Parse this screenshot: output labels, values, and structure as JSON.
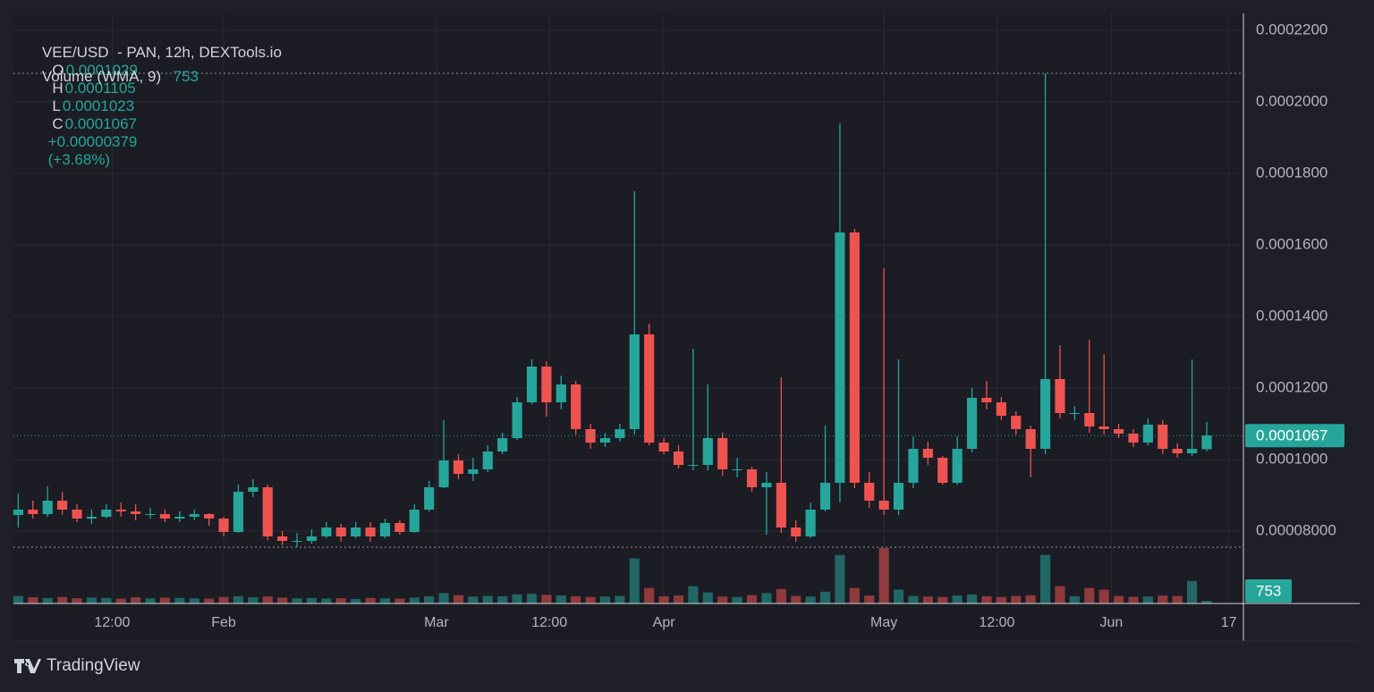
{
  "chart_data": {
    "type": "candlestick",
    "title": "VEE/USD  - PAN, 12h, DEXTools.io",
    "ohlc_labels": [
      "O",
      "H",
      "L",
      "C"
    ],
    "change": {
      "value": 3.79e-06,
      "label": "+0.00000379"
    },
    "change_pct": {
      "value": 3.68,
      "label": "(+3.68%)"
    },
    "up_color": "#26a69a",
    "down_color": "#ef5350",
    "grid": true,
    "brand": "TradingView",
    "xlim": [
      2.34,
      170
    ],
    "xticks": [
      {
        "value": 15.8,
        "label": "12:00"
      },
      {
        "value": 31,
        "label": "Feb"
      },
      {
        "value": 60,
        "label": "Mar"
      },
      {
        "value": 75.4,
        "label": "12:00"
      },
      {
        "value": 91,
        "label": "Apr"
      },
      {
        "value": 121,
        "label": "May"
      },
      {
        "value": 136.4,
        "label": "12:00"
      },
      {
        "value": 152,
        "label": "Jun"
      },
      {
        "value": 168,
        "label": "17"
      }
    ],
    "ylim": [
      5.975e-05,
      0.0002285
    ],
    "yticks": [
      {
        "value": 8e-05,
        "label": "0.00008000"
      },
      {
        "value": 0.0001,
        "label": "0.0001000"
      },
      {
        "value": 0.00012,
        "label": "0.0001200"
      },
      {
        "value": 0.00014,
        "label": "0.0001400"
      },
      {
        "value": 0.00016,
        "label": "0.0001600"
      },
      {
        "value": 0.00018,
        "label": "0.0001800"
      },
      {
        "value": 0.0002,
        "label": "0.0002000"
      },
      {
        "value": 0.00022,
        "label": "0.0002200"
      }
    ],
    "candles": {
      "x": [
        3,
        5,
        7,
        9,
        11,
        13,
        15,
        17,
        19,
        21,
        23,
        25,
        27,
        29,
        31,
        33,
        35,
        37,
        39,
        41,
        43,
        45,
        47,
        49,
        51,
        53,
        55,
        57,
        59,
        61,
        63,
        65,
        67,
        69,
        71,
        73,
        75,
        77,
        79,
        81,
        83,
        85,
        87,
        89,
        91,
        93,
        95,
        97,
        99,
        101,
        103,
        105,
        107,
        109,
        111,
        113,
        115,
        117,
        119,
        121,
        123,
        125,
        127,
        129,
        131,
        133,
        135,
        137,
        139,
        141,
        143,
        145,
        147,
        149,
        151,
        153,
        155,
        157,
        159,
        161,
        163,
        165
      ],
      "open": [
        8.45e-05,
        8.6e-05,
        8.475e-05,
        8.85e-05,
        8.6e-05,
        8.35e-05,
        8.4e-05,
        8.6e-05,
        8.55e-05,
        8.475e-05,
        8.475e-05,
        8.35e-05,
        8.4e-05,
        8.475e-05,
        8.35e-05,
        7.975e-05,
        9.1e-05,
        9.225e-05,
        7.85e-05,
        7.725e-05,
        7.725e-05,
        7.85e-05,
        8.1e-05,
        7.85e-05,
        8.1e-05,
        7.85e-05,
        8.225e-05,
        7.975e-05,
        8.6e-05,
        9.225e-05,
        9.975e-05,
        9.6e-05,
        9.725e-05,
        0.00010225,
        0.000106,
        0.000116,
        0.000126,
        0.000116,
        0.000121,
        0.0001085,
        0.00010475,
        0.000106,
        0.0001085,
        0.000135,
        0.00010475,
        0.00010225,
        9.85e-05,
        9.85e-05,
        0.000106,
        9.725e-05,
        9.725e-05,
        9.225e-05,
        9.35e-05,
        8.1e-05,
        7.85e-05,
        8.6e-05,
        9.35e-05,
        0.0001635,
        9.35e-05,
        8.85e-05,
        8.6e-05,
        9.35e-05,
        0.000103,
        0.0001005,
        9.35e-05,
        0.000103,
        0.00011725,
        0.000116,
        0.00011225,
        0.0001085,
        0.000103,
        0.0001225,
        0.000113,
        0.000113,
        0.00010925,
        0.0001085,
        0.00010725,
        0.00010475,
        0.00010975,
        0.000103,
        0.00010175,
        0.0001029
      ],
      "high": [
        9.05e-05,
        8.85e-05,
        9.25e-05,
        9.1e-05,
        8.75e-05,
        8.6e-05,
        8.75e-05,
        8.8e-05,
        8.75e-05,
        8.65e-05,
        8.6e-05,
        8.55e-05,
        8.6e-05,
        8.5e-05,
        8.4e-05,
        9.3e-05,
        9.45e-05,
        9.3e-05,
        8e-05,
        7.95e-05,
        8.05e-05,
        8.25e-05,
        8.2e-05,
        8.25e-05,
        8.25e-05,
        8.35e-05,
        8.3e-05,
        8.75e-05,
        9.4e-05,
        0.000111,
        0.0001015,
        0.0001005,
        0.000104,
        0.0001075,
        0.0001175,
        0.000128,
        0.0001275,
        0.0001235,
        0.000122,
        0.00011,
        0.0001075,
        0.00011,
        0.000175,
        0.000138,
        0.000106,
        0.000104,
        0.000131,
        0.000121,
        0.0001075,
        0.0001005,
        9.8e-05,
        9.65e-05,
        0.000123,
        8.3e-05,
        8.8e-05,
        0.0001095,
        0.000194,
        0.0001645,
        9.65e-05,
        0.0001535,
        0.000128,
        0.0001065,
        0.000105,
        0.000101,
        0.0001065,
        0.00012,
        0.000122,
        0.0001175,
        0.0001135,
        0.0001095,
        0.000208,
        0.000132,
        0.000115,
        0.0001335,
        0.0001295,
        0.00011,
        0.0001085,
        0.0001115,
        0.000111,
        0.0001045,
        0.000128,
        0.0001105
      ],
      "low": [
        8.1e-05,
        8.35e-05,
        8.4e-05,
        8.45e-05,
        8.25e-05,
        8.2e-05,
        8.35e-05,
        8.4e-05,
        8.3e-05,
        8.35e-05,
        8.25e-05,
        8.25e-05,
        8.3e-05,
        8.15e-05,
        7.85e-05,
        7.95e-05,
        8.95e-05,
        7.75e-05,
        7.6e-05,
        7.55e-05,
        7.65e-05,
        7.8e-05,
        7.7e-05,
        7.8e-05,
        7.7e-05,
        7.8e-05,
        7.9e-05,
        7.95e-05,
        8.55e-05,
        9.2e-05,
        9.45e-05,
        9.4e-05,
        9.65e-05,
        0.0001015,
        0.0001055,
        0.0001155,
        0.000112,
        0.000114,
        0.000107,
        0.000103,
        0.0001035,
        0.000105,
        0.000107,
        0.000104,
        0.0001015,
        9.75e-05,
        9.7e-05,
        9.7e-05,
        9.55e-05,
        9.5e-05,
        9.1e-05,
        7.9e-05,
        7.95e-05,
        7.7e-05,
        7.8e-05,
        8.55e-05,
        8.8e-05,
        9.2e-05,
        8.65e-05,
        8.45e-05,
        8.45e-05,
        9.2e-05,
        9.85e-05,
        9.3e-05,
        9.3e-05,
        0.000102,
        0.000114,
        0.000111,
        0.000107,
        9.5e-05,
        0.0001015,
        0.0001115,
        0.000111,
        0.0001075,
        0.000107,
        0.000106,
        0.0001035,
        0.000104,
        0.0001015,
        0.0001005,
        0.000101,
        0.0001023
      ],
      "close": [
        8.6e-05,
        8.475e-05,
        8.85e-05,
        8.6e-05,
        8.35e-05,
        8.4e-05,
        8.6e-05,
        8.55e-05,
        8.475e-05,
        8.475e-05,
        8.35e-05,
        8.4e-05,
        8.475e-05,
        8.35e-05,
        7.975e-05,
        9.1e-05,
        9.225e-05,
        7.85e-05,
        7.725e-05,
        7.725e-05,
        7.85e-05,
        8.1e-05,
        7.85e-05,
        8.1e-05,
        7.85e-05,
        8.225e-05,
        7.975e-05,
        8.6e-05,
        9.225e-05,
        9.975e-05,
        9.6e-05,
        9.725e-05,
        0.00010225,
        0.000106,
        0.000116,
        0.000126,
        0.000116,
        0.000121,
        0.0001085,
        0.00010475,
        0.000106,
        0.0001085,
        0.000135,
        0.00010475,
        0.00010225,
        9.85e-05,
        9.85e-05,
        0.000106,
        9.725e-05,
        9.725e-05,
        9.225e-05,
        9.35e-05,
        8.1e-05,
        7.85e-05,
        8.6e-05,
        9.35e-05,
        0.0001635,
        9.35e-05,
        8.85e-05,
        8.6e-05,
        9.35e-05,
        0.000103,
        0.0001005,
        9.35e-05,
        0.000103,
        0.00011725,
        0.000116,
        0.00011225,
        0.0001085,
        0.000103,
        0.0001225,
        0.000113,
        0.000113,
        0.00010925,
        0.0001085,
        0.00010725,
        0.00010475,
        0.00010975,
        0.000103,
        0.00010175,
        0.000103,
        0.0001067
      ]
    },
    "volume": {
      "name": "Volume (WMA, 9)",
      "values": [
        2200,
        1800,
        1600,
        1900,
        1500,
        1700,
        1600,
        1400,
        1800,
        1500,
        1700,
        1600,
        1500,
        1400,
        1900,
        2100,
        1800,
        2000,
        1700,
        1500,
        1600,
        1400,
        1500,
        1300,
        1600,
        1500,
        1400,
        1700,
        2100,
        3000,
        2400,
        2000,
        2200,
        2100,
        2600,
        2800,
        2500,
        2300,
        2100,
        1900,
        2000,
        2200,
        13000,
        4500,
        2100,
        2300,
        5000,
        3200,
        2000,
        1900,
        2400,
        3000,
        4200,
        2200,
        2000,
        3400,
        14000,
        4500,
        2300,
        16000,
        4000,
        2200,
        2000,
        1900,
        2300,
        2600,
        2100,
        1900,
        2200,
        2400,
        14000,
        5000,
        2100,
        4500,
        4000,
        2200,
        1900,
        2000,
        2300,
        2200,
        6500,
        753
      ]
    }
  }
}
